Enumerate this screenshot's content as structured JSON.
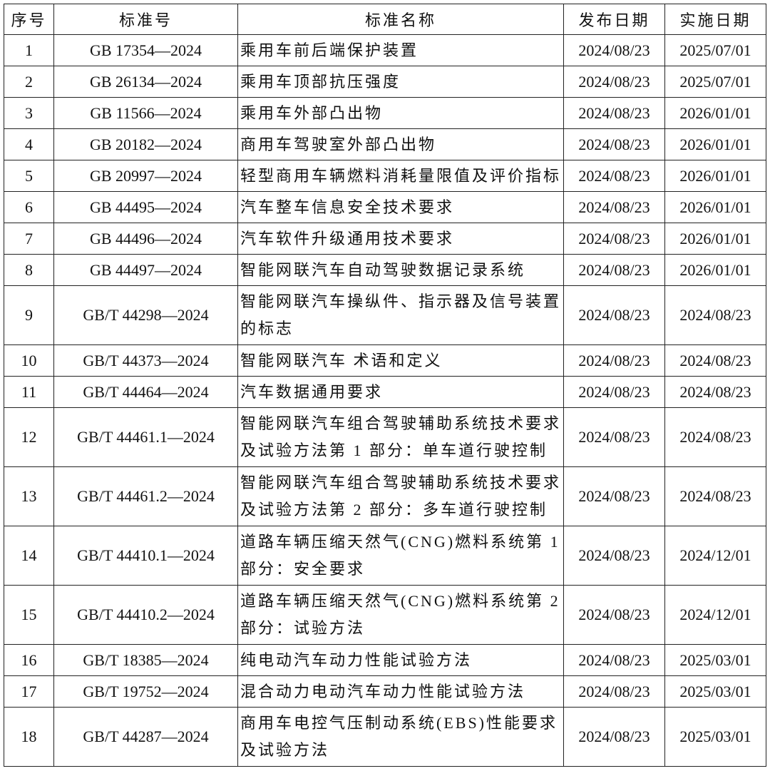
{
  "headers": {
    "no": "序号",
    "code": "标准号",
    "name": "标准名称",
    "publish": "发布日期",
    "effective": "实施日期"
  },
  "rows": [
    {
      "no": "1",
      "code": "GB 17354—2024",
      "name": "乘用车前后端保护装置",
      "publish": "2024/08/23",
      "effective": "2025/07/01"
    },
    {
      "no": "2",
      "code": "GB 26134—2024",
      "name": "乘用车顶部抗压强度",
      "publish": "2024/08/23",
      "effective": "2025/07/01"
    },
    {
      "no": "3",
      "code": "GB 11566—2024",
      "name": "乘用车外部凸出物",
      "publish": "2024/08/23",
      "effective": "2026/01/01"
    },
    {
      "no": "4",
      "code": "GB 20182—2024",
      "name": "商用车驾驶室外部凸出物",
      "publish": "2024/08/23",
      "effective": "2026/01/01"
    },
    {
      "no": "5",
      "code": "GB 20997—2024",
      "name": "轻型商用车辆燃料消耗量限值及评价指标",
      "publish": "2024/08/23",
      "effective": "2026/01/01"
    },
    {
      "no": "6",
      "code": "GB 44495—2024",
      "name": "汽车整车信息安全技术要求",
      "publish": "2024/08/23",
      "effective": "2026/01/01"
    },
    {
      "no": "7",
      "code": "GB 44496—2024",
      "name": "汽车软件升级通用技术要求",
      "publish": "2024/08/23",
      "effective": "2026/01/01"
    },
    {
      "no": "8",
      "code": "GB 44497—2024",
      "name": "智能网联汽车自动驾驶数据记录系统",
      "publish": "2024/08/23",
      "effective": "2026/01/01"
    },
    {
      "no": "9",
      "code": "GB/T 44298—2024",
      "name": "智能网联汽车操纵件、指示器及信号装置\n的标志",
      "publish": "2024/08/23",
      "effective": "2024/08/23"
    },
    {
      "no": "10",
      "code": "GB/T 44373—2024",
      "name": "智能网联汽车 术语和定义",
      "publish": "2024/08/23",
      "effective": "2024/08/23"
    },
    {
      "no": "11",
      "code": "GB/T 44464—2024",
      "name": "汽车数据通用要求",
      "publish": "2024/08/23",
      "effective": "2024/08/23"
    },
    {
      "no": "12",
      "code": "GB/T 44461.1—2024",
      "name": "智能网联汽车组合驾驶辅助系统技术要求\n及试验方法第 1 部分：单车道行驶控制",
      "publish": "2024/08/23",
      "effective": "2024/08/23"
    },
    {
      "no": "13",
      "code": "GB/T 44461.2—2024",
      "name": "智能网联汽车组合驾驶辅助系统技术要求\n及试验方法第 2 部分：多车道行驶控制",
      "publish": "2024/08/23",
      "effective": "2024/08/23"
    },
    {
      "no": "14",
      "code": "GB/T 44410.1—2024",
      "name": "道路车辆压缩天然气(CNG)燃料系统第 1\n部分：安全要求",
      "publish": "2024/08/23",
      "effective": "2024/12/01"
    },
    {
      "no": "15",
      "code": "GB/T 44410.2—2024",
      "name": "道路车辆压缩天然气(CNG)燃料系统第 2\n部分：试验方法",
      "publish": "2024/08/23",
      "effective": "2024/12/01"
    },
    {
      "no": "16",
      "code": "GB/T 18385—2024",
      "name": "纯电动汽车动力性能试验方法",
      "publish": "2024/08/23",
      "effective": "2025/03/01"
    },
    {
      "no": "17",
      "code": "GB/T 19752—2024",
      "name": "混合动力电动汽车动力性能试验方法",
      "publish": "2024/08/23",
      "effective": "2025/03/01"
    },
    {
      "no": "18",
      "code": "GB/T 44287—2024",
      "name": "商用车电控气压制动系统(EBS)性能要求\n及试验方法",
      "publish": "2024/08/23",
      "effective": "2025/03/01"
    }
  ]
}
